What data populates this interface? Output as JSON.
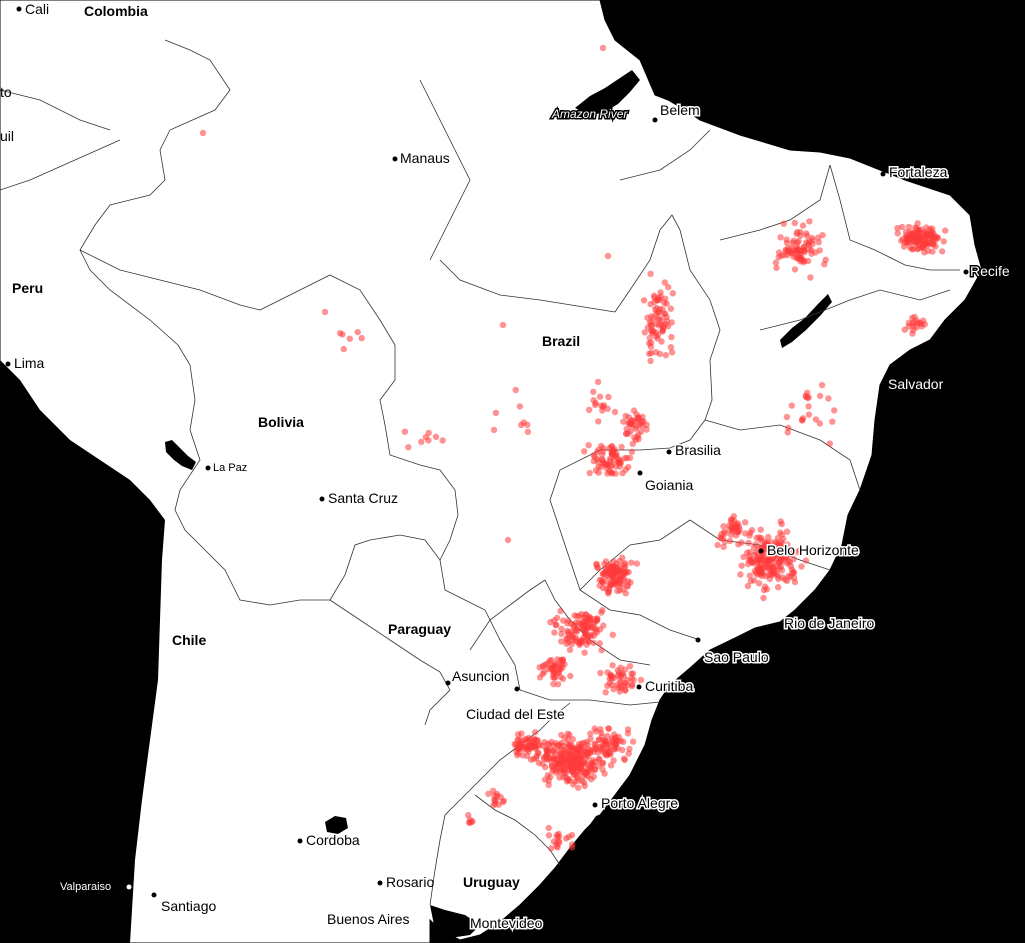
{
  "colors": {
    "ocean": "#000000",
    "land": "#ffffff",
    "border": "#000000",
    "point": "#ff3b3b"
  },
  "countries": {
    "colombia": "Colombia",
    "peru": "Peru",
    "bolivia": "Bolivia",
    "brazil": "Brazil",
    "paraguay": "Paraguay",
    "chile": "Chile",
    "uruguay": "Uruguay"
  },
  "cities": {
    "cali": "Cali",
    "quito": "to",
    "guayaquil": "uil",
    "lima": "Lima",
    "manaus": "Manaus",
    "belem": "Belem",
    "fortaleza": "Fortaleza",
    "recife": "Recife",
    "salvador": "Salvador",
    "brasilia": "Brasilia",
    "goiania": "Goiania",
    "belo_horizonte": "Belo Horizonte",
    "rio_de_janeiro": "Rio de Janeiro",
    "sao_paulo": "Sao Paulo",
    "curitiba": "Curitiba",
    "porto_alegre": "Porto Alegre",
    "la_paz": "La Paz",
    "santa_cruz": "Santa Cruz",
    "asuncion": "Asuncion",
    "ciudad_del_este": "Ciudad del Este",
    "cordoba": "Cordoba",
    "rosario": "Rosario",
    "buenos_aires": "Buenos Aires",
    "montevideo": "Montevideo",
    "valparaiso": "Valparaiso",
    "santiago": "Santiago"
  },
  "features": {
    "amazon_river": "Amazon River"
  }
}
